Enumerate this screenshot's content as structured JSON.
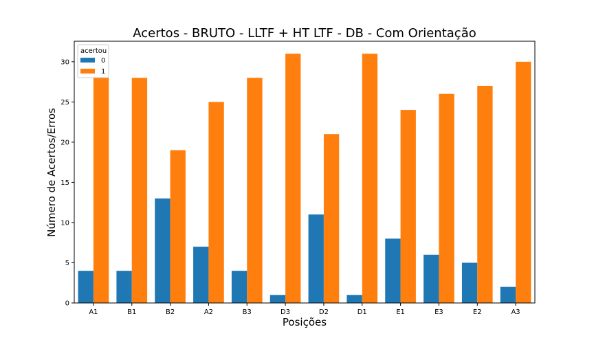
{
  "chart_data": {
    "type": "bar",
    "title": "Acertos - BRUTO - LLTF + HT LTF - DB - Com Orientação",
    "xlabel": "Posições",
    "ylabel": "Número de Acertos/Erros",
    "categories": [
      "A1",
      "B1",
      "B2",
      "A2",
      "B3",
      "D3",
      "D2",
      "D1",
      "E1",
      "E3",
      "E2",
      "A3"
    ],
    "series": [
      {
        "name": "0",
        "values": [
          4,
          4,
          13,
          7,
          4,
          1,
          11,
          1,
          8,
          6,
          5,
          2
        ]
      },
      {
        "name": "1",
        "values": [
          28,
          28,
          19,
          25,
          28,
          31,
          21,
          31,
          24,
          26,
          27,
          30
        ]
      }
    ],
    "ylim": [
      0,
      32.55
    ],
    "yticks": [
      0,
      5,
      10,
      15,
      20,
      25,
      30
    ],
    "colors": [
      "#1f77b4",
      "#ff7f0e"
    ],
    "grid": false,
    "legend": {
      "title": "acertou",
      "placement": "top-left"
    }
  }
}
